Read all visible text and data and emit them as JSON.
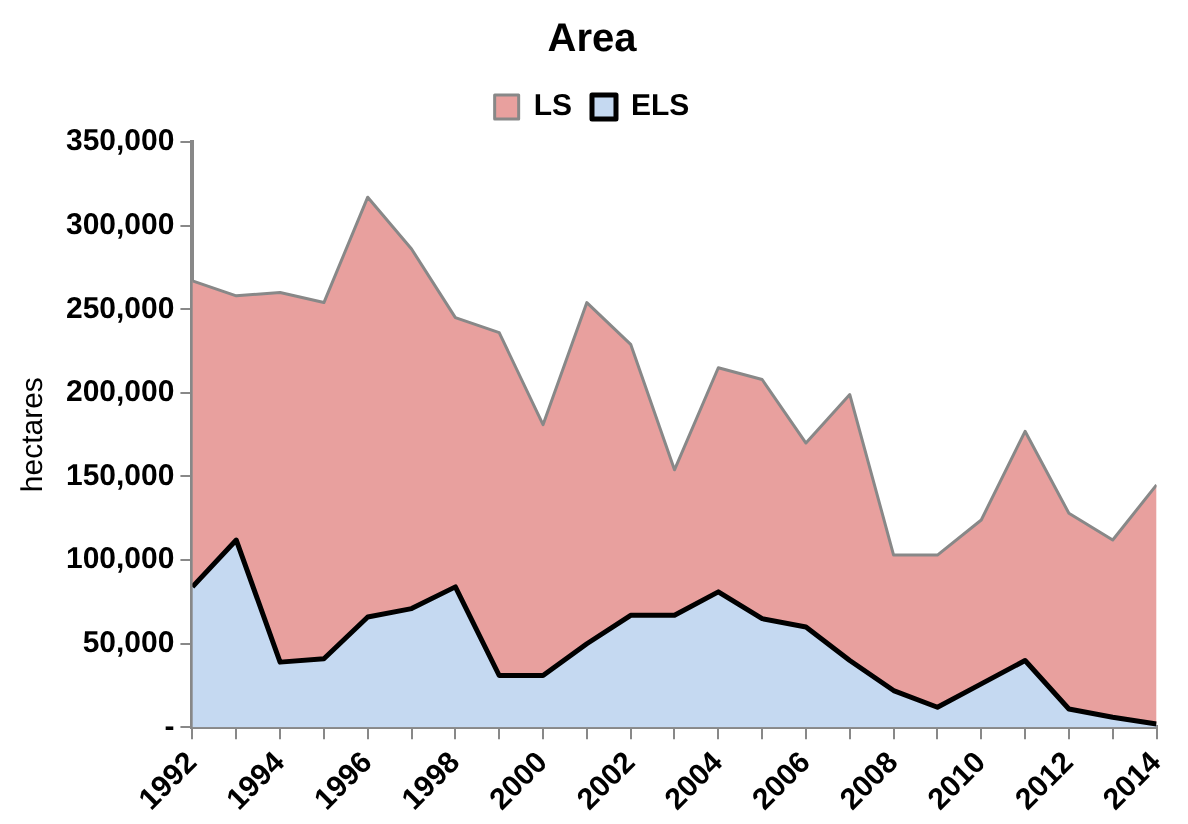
{
  "chart_data": {
    "type": "area",
    "title": "Area",
    "ylabel": "hectares",
    "stacked": true,
    "legend": "top",
    "x": [
      1992,
      1993,
      1994,
      1995,
      1996,
      1997,
      1998,
      1999,
      2000,
      2001,
      2002,
      2003,
      2004,
      2005,
      2006,
      2007,
      2008,
      2009,
      2010,
      2011,
      2012,
      2013,
      2014
    ],
    "xlim": [
      1992,
      2014
    ],
    "xticks": [
      1992,
      {
        "value": 1993,
        "label": null
      },
      1994,
      {
        "value": 1995,
        "label": null
      },
      1996,
      {
        "value": 1997,
        "label": null
      },
      1998,
      {
        "value": 1999,
        "label": null
      },
      2000,
      {
        "value": 2001,
        "label": null
      },
      2002,
      {
        "value": 2003,
        "label": null
      },
      2004,
      {
        "value": 2005,
        "label": null
      },
      2006,
      {
        "value": 2007,
        "label": null
      },
      2008,
      {
        "value": 2009,
        "label": null
      },
      2010,
      {
        "value": 2011,
        "label": null
      },
      2012,
      {
        "value": 2013,
        "label": null
      },
      2014
    ],
    "ylim": [
      0,
      350000
    ],
    "yticks": [
      {
        "value": 0,
        "label": "-"
      },
      {
        "value": 50000,
        "label": "50,000"
      },
      {
        "value": 100000,
        "label": "100,000"
      },
      {
        "value": 150000,
        "label": "150,000"
      },
      {
        "value": 200000,
        "label": "200,000"
      },
      {
        "value": 250000,
        "label": "250,000"
      },
      {
        "value": 300000,
        "label": "300,000"
      },
      {
        "value": 350000,
        "label": "350,000"
      }
    ],
    "series": [
      {
        "name": "ELS",
        "color": "#c5d9f1",
        "values": [
          84000,
          112000,
          39000,
          41000,
          66000,
          71000,
          84000,
          31000,
          31000,
          50000,
          67000,
          67000,
          81000,
          65000,
          60000,
          40000,
          22000,
          12000,
          26000,
          40000,
          11000,
          6000,
          2000
        ]
      },
      {
        "name": "LS",
        "color": "#e8a09e",
        "values": [
          183000,
          146000,
          221000,
          213000,
          251000,
          215000,
          161000,
          205000,
          150000,
          204000,
          162000,
          87000,
          134000,
          143000,
          110000,
          159000,
          81000,
          91000,
          98000,
          137000,
          117000,
          106000,
          143000
        ]
      }
    ]
  }
}
